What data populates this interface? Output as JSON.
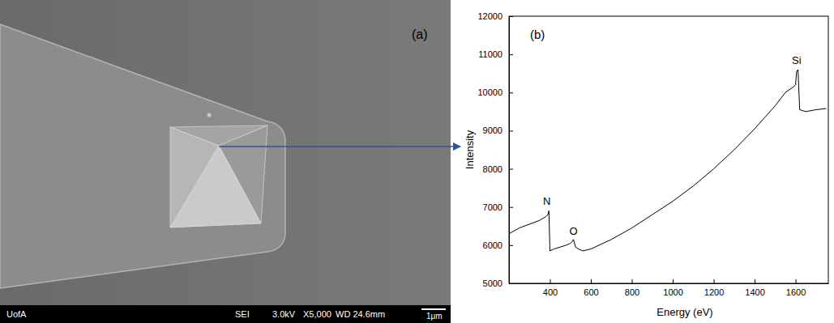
{
  "chart_data": {
    "type": "line",
    "title": "(b)",
    "x_label": "Energy (eV)",
    "y_label": "Intensity",
    "x": [
      200,
      250,
      300,
      350,
      380,
      390,
      395,
      400,
      420,
      450,
      480,
      500,
      510,
      515,
      525,
      540,
      560,
      600,
      700,
      800,
      900,
      1000,
      1100,
      1200,
      1300,
      1400,
      1500,
      1550,
      1590,
      1600,
      1605,
      1612,
      1620,
      1650,
      1700,
      1750
    ],
    "values": [
      6300,
      6450,
      6550,
      6650,
      6750,
      6800,
      6900,
      5850,
      5900,
      5950,
      6000,
      6050,
      6100,
      6150,
      5950,
      5900,
      5850,
      5900,
      6150,
      6450,
      6800,
      7150,
      7550,
      8000,
      8500,
      9050,
      9650,
      10000,
      10150,
      10200,
      10550,
      10600,
      9550,
      9500,
      9550,
      9580
    ],
    "color": "#000000",
    "xlim": [
      200,
      1760
    ],
    "xticks": [
      400,
      600,
      800,
      1000,
      1200,
      1400,
      1600
    ],
    "ylim": [
      5000,
      12000
    ],
    "yticks": [
      5000,
      6000,
      7000,
      8000,
      9000,
      10000,
      11000,
      12000
    ],
    "grid": false,
    "annotations": [
      {
        "text": "N",
        "x": 385,
        "y": 7050
      },
      {
        "text": "O",
        "x": 515,
        "y": 6280
      },
      {
        "text": "Si",
        "x": 1605,
        "y": 10750
      }
    ]
  },
  "image_panel": {
    "label": "(a)",
    "info_bar": [
      "UofA",
      "SEI",
      "3.0kV",
      "X5,000",
      "WD 24.6mm",
      "1μm"
    ]
  }
}
